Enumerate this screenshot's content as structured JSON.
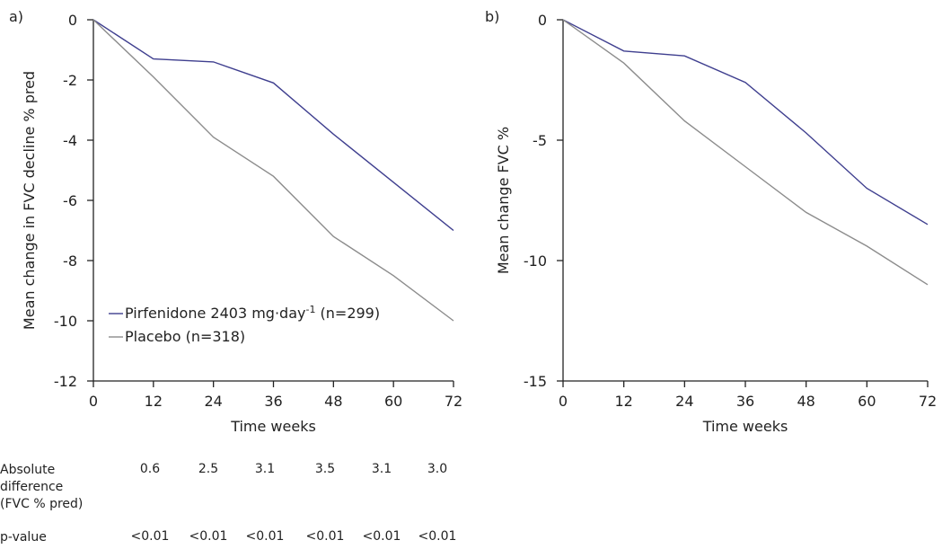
{
  "chart_data": [
    {
      "type": "line",
      "panel_label": "a)",
      "x": [
        0,
        12,
        24,
        36,
        48,
        60,
        72
      ],
      "xlabel": "Time weeks",
      "ylabel": "Mean change in FVC decline % pred",
      "xlim": [
        0,
        72
      ],
      "ylim": [
        -12,
        0
      ],
      "xticks": [
        0,
        12,
        24,
        36,
        48,
        60,
        72
      ],
      "yticks": [
        0,
        -2,
        -4,
        -6,
        -8,
        -10,
        -12
      ],
      "legend_position": "lower-left",
      "series": [
        {
          "name": "Pirfenidone 2403 mg·day",
          "name_sup": "-1",
          "name_suffix": " (n=299)",
          "color": "#3f3f8f",
          "values": [
            0,
            -1.3,
            -1.4,
            -2.1,
            -3.8,
            -5.4,
            -7.0
          ]
        },
        {
          "name": "Placebo (n=318)",
          "color": "#8c8c8c",
          "values": [
            0,
            -1.9,
            -3.9,
            -5.2,
            -7.2,
            -8.5,
            -10.0
          ]
        }
      ]
    },
    {
      "type": "line",
      "panel_label": "b)",
      "x": [
        0,
        12,
        24,
        36,
        48,
        60,
        72
      ],
      "xlabel": "Time weeks",
      "ylabel": "Mean change FVC %",
      "xlim": [
        0,
        72
      ],
      "ylim": [
        -15,
        0
      ],
      "xticks": [
        0,
        12,
        24,
        36,
        48,
        60,
        72
      ],
      "yticks": [
        0,
        -5,
        -10,
        -15
      ],
      "series": [
        {
          "color": "#3f3f8f",
          "values": [
            0,
            -1.3,
            -1.5,
            -2.6,
            -4.7,
            -7.0,
            -8.5
          ]
        },
        {
          "color": "#8c8c8c",
          "values": [
            0,
            -1.8,
            -4.2,
            -6.1,
            -8.0,
            -9.4,
            -11.0
          ]
        }
      ]
    }
  ],
  "table": {
    "rows": [
      {
        "label": "Absolute difference (FVC % pred)",
        "label_lines": [
          "Absolute",
          "difference",
          "(FVC % pred)"
        ],
        "values": [
          "0.6",
          "2.5",
          "3.1",
          "3.5",
          "3.1",
          "3.0"
        ]
      },
      {
        "label": "p-value",
        "label_lines": [
          "p-value"
        ],
        "values": [
          "<0.01",
          "<0.01",
          "<0.01",
          "<0.01",
          "<0.01",
          "<0.01"
        ]
      }
    ]
  }
}
